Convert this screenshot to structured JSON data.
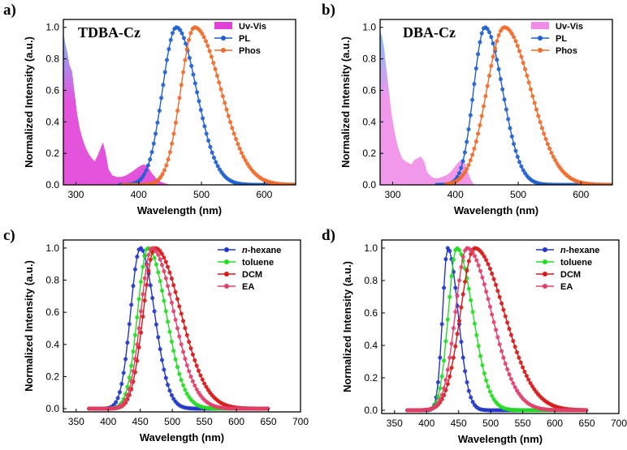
{
  "figure": {
    "panels": [
      {
        "label": "a)",
        "title": "TDBA-Cz",
        "xlabel": "Wavelength (nm)",
        "ylabel": "Normalized Intensity (a.u.)",
        "xticks": [
          "300",
          "400",
          "500",
          "600"
        ],
        "yticks": [
          "0.0",
          "0.2",
          "0.4",
          "0.6",
          "0.8",
          "1.0"
        ],
        "legend": [
          "Uv-Vis",
          "PL",
          "Phos"
        ]
      },
      {
        "label": "b)",
        "title": "DBA-Cz",
        "xlabel": "Wavelength (nm)",
        "ylabel": "Normalized Intensity (a.u.)",
        "xticks": [
          "300",
          "400",
          "500",
          "600"
        ],
        "yticks": [
          "0.0",
          "0.2",
          "0.4",
          "0.6",
          "0.8",
          "1.0"
        ],
        "legend": [
          "Uv-Vis",
          "PL",
          "Phos"
        ]
      },
      {
        "label": "c)",
        "title": "",
        "xlabel": "Wavelength (nm)",
        "ylabel": "Normalized Intensity (a.u.)",
        "xticks": [
          "350",
          "400",
          "450",
          "500",
          "550",
          "600",
          "650",
          "700"
        ],
        "yticks": [
          "0.0",
          "0.2",
          "0.4",
          "0.6",
          "0.8",
          "1.0"
        ],
        "legend_prefix": "n",
        "legend": [
          "-hexane",
          "toluene",
          "DCM",
          "EA"
        ]
      },
      {
        "label": "d)",
        "title": "",
        "xlabel": "Wavelength (nm)",
        "ylabel": "Normalized Intensity (a.u.)",
        "xticks": [
          "350",
          "400",
          "450",
          "500",
          "550",
          "600",
          "650",
          "700"
        ],
        "yticks": [
          "0.0",
          "0.2",
          "0.4",
          "0.6",
          "0.8",
          "1.0"
        ],
        "legend_prefix": "n",
        "legend": [
          "-hexane",
          "toluene",
          "DCM",
          "EA"
        ]
      }
    ]
  },
  "colors": {
    "uvvis_a": "#e040d8",
    "uvvis_b": "#f08ce8",
    "uvvis_top": "#6fb6ff",
    "pl": "#1f5fd0",
    "phos": "#f06a2a",
    "hexane": "#2236c8",
    "toluene": "#22dd22",
    "dcm": "#d81818",
    "ea": "#e0406a"
  },
  "chart_data": [
    {
      "panel": "a",
      "type": "line",
      "title": "TDBA-Cz",
      "xlabel": "Wavelength (nm)",
      "ylabel": "Normalized Intensity (a.u.)",
      "xlim": [
        280,
        650
      ],
      "ylim": [
        0,
        1.05
      ],
      "series": [
        {
          "name": "Uv-Vis",
          "kind": "area",
          "x": [
            280,
            283,
            286,
            290,
            294,
            298,
            302,
            306,
            310,
            315,
            320,
            325,
            330,
            335,
            340,
            343,
            347,
            352,
            358,
            365,
            372,
            380,
            388,
            395,
            402,
            408,
            414,
            420,
            428,
            435,
            442,
            450
          ],
          "y": [
            0.97,
            0.9,
            0.85,
            0.76,
            0.72,
            0.58,
            0.45,
            0.36,
            0.3,
            0.24,
            0.2,
            0.17,
            0.15,
            0.19,
            0.24,
            0.27,
            0.21,
            0.1,
            0.06,
            0.05,
            0.05,
            0.06,
            0.08,
            0.1,
            0.12,
            0.13,
            0.12,
            0.08,
            0.04,
            0.02,
            0.01,
            0.0
          ]
        },
        {
          "name": "PL",
          "kind": "line-marker",
          "peak": 460,
          "sigma_left": 22,
          "sigma_right": 32,
          "xmin": 370,
          "xmax": 650
        },
        {
          "name": "Phos",
          "kind": "line-marker",
          "peak": 489,
          "sigma_left": 22,
          "sigma_right": 42,
          "xmin": 375,
          "xmax": 650
        }
      ]
    },
    {
      "panel": "b",
      "type": "line",
      "title": "DBA-Cz",
      "xlabel": "Wavelength (nm)",
      "ylabel": "Normalized Intensity (a.u.)",
      "xlim": [
        280,
        650
      ],
      "ylim": [
        0,
        1.05
      ],
      "series": [
        {
          "name": "Uv-Vis",
          "kind": "area",
          "x": [
            280,
            283,
            286,
            290,
            294,
            298,
            302,
            306,
            310,
            315,
            320,
            325,
            330,
            335,
            340,
            345,
            350,
            355,
            362,
            370,
            378,
            385,
            392,
            398,
            404,
            410,
            415,
            420,
            425,
            430
          ],
          "y": [
            0.98,
            0.94,
            0.88,
            0.74,
            0.6,
            0.46,
            0.36,
            0.28,
            0.22,
            0.17,
            0.15,
            0.14,
            0.13,
            0.16,
            0.17,
            0.18,
            0.15,
            0.08,
            0.05,
            0.04,
            0.05,
            0.06,
            0.08,
            0.11,
            0.14,
            0.16,
            0.14,
            0.08,
            0.03,
            0.0
          ]
        },
        {
          "name": "PL",
          "kind": "line-marker",
          "peak": 447,
          "sigma_left": 18,
          "sigma_right": 28,
          "xmin": 370,
          "xmax": 650
        },
        {
          "name": "Phos",
          "kind": "line-marker",
          "peak": 478,
          "sigma_left": 28,
          "sigma_right": 42,
          "xmin": 385,
          "xmax": 650
        }
      ]
    },
    {
      "panel": "c",
      "type": "line",
      "title": "",
      "xlabel": "Wavelength (nm)",
      "ylabel": "Normalized Intensity (a.u.)",
      "xlim": [
        330,
        700
      ],
      "ylim": [
        -0.02,
        1.05
      ],
      "series": [
        {
          "name": "n-hexane",
          "kind": "line-marker",
          "peak": 450,
          "sigma_left": 15,
          "sigma_right": 22,
          "xmin": 370,
          "xmax": 650
        },
        {
          "name": "toluene",
          "kind": "line-marker",
          "peak": 462,
          "sigma_left": 16,
          "sigma_right": 28,
          "xmin": 370,
          "xmax": 650
        },
        {
          "name": "DCM",
          "kind": "line-marker",
          "peak": 473,
          "sigma_left": 18,
          "sigma_right": 40,
          "xmin": 370,
          "xmax": 650
        },
        {
          "name": "EA",
          "kind": "line-marker",
          "peak": 468,
          "sigma_left": 17,
          "sigma_right": 34,
          "xmin": 370,
          "xmax": 650
        }
      ]
    },
    {
      "panel": "d",
      "type": "line",
      "title": "",
      "xlabel": "Wavelength (nm)",
      "ylabel": "Normalized Intensity (a.u.)",
      "xlim": [
        330,
        700
      ],
      "ylim": [
        -0.02,
        1.05
      ],
      "series": [
        {
          "name": "n-hexane",
          "kind": "line-marker",
          "peak": 433,
          "sigma_left": 8,
          "sigma_right": 16,
          "xmin": 370,
          "xmax": 650
        },
        {
          "name": "toluene",
          "kind": "line-marker",
          "peak": 447,
          "sigma_left": 13,
          "sigma_right": 25,
          "xmin": 370,
          "xmax": 650
        },
        {
          "name": "DCM",
          "kind": "line-marker",
          "peak": 475,
          "sigma_left": 22,
          "sigma_right": 46,
          "xmin": 370,
          "xmax": 650
        },
        {
          "name": "EA",
          "kind": "line-marker",
          "peak": 463,
          "sigma_left": 18,
          "sigma_right": 38,
          "xmin": 370,
          "xmax": 650
        }
      ]
    }
  ]
}
